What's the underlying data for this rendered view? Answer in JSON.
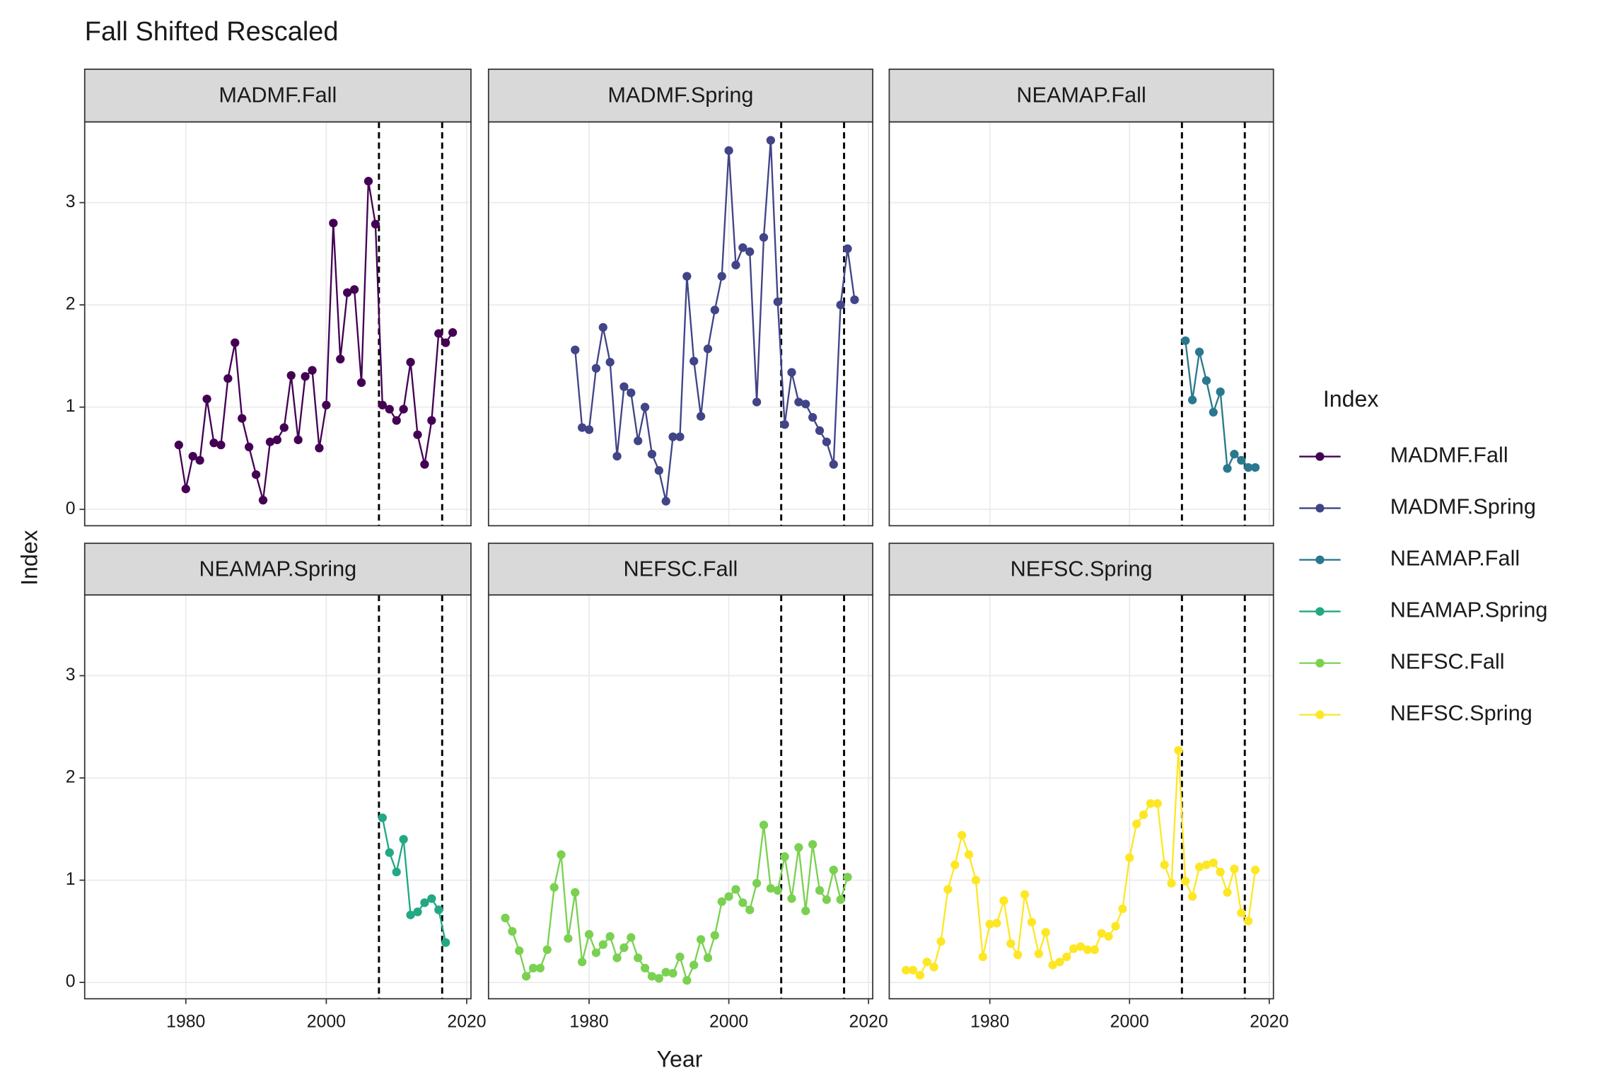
{
  "chart_data": {
    "type": "line",
    "title": "Fall Shifted Rescaled",
    "x_label": "Year",
    "y_label": "Index",
    "legend_title": "Index",
    "xlim": [
      1965.6,
      2020.6
    ],
    "ylim": [
      -0.16,
      3.79
    ],
    "xticks": [
      1980,
      2000,
      2020
    ],
    "yticks": [
      0,
      1,
      2,
      3
    ],
    "vlines": [
      2007.5,
      2016.5
    ],
    "grid": true,
    "series": [
      {
        "name": "MADMF.Fall",
        "color": "#440154",
        "x": [
          1979,
          1980,
          1981,
          1982,
          1983,
          1984,
          1985,
          1986,
          1987,
          1988,
          1989,
          1990,
          1991,
          1992,
          1993,
          1994,
          1995,
          1996,
          1997,
          1998,
          1999,
          2000,
          2001,
          2002,
          2003,
          2004,
          2005,
          2006,
          2007,
          2008,
          2009,
          2010,
          2011,
          2012,
          2013,
          2014,
          2015,
          2016,
          2017,
          2018
        ],
        "values": [
          0.63,
          0.2,
          0.52,
          0.48,
          1.08,
          0.65,
          0.63,
          1.28,
          1.63,
          0.89,
          0.61,
          0.34,
          0.09,
          0.66,
          0.68,
          0.8,
          1.31,
          0.68,
          1.3,
          1.36,
          0.6,
          1.02,
          2.8,
          1.47,
          2.12,
          2.15,
          1.24,
          3.21,
          2.79,
          1.02,
          0.98,
          0.87,
          0.98,
          1.44,
          0.73,
          0.44,
          0.87,
          1.72,
          1.63,
          1.73
        ]
      },
      {
        "name": "MADMF.Spring",
        "color": "#414487",
        "x": [
          1978,
          1979,
          1980,
          1981,
          1982,
          1983,
          1984,
          1985,
          1986,
          1987,
          1988,
          1989,
          1990,
          1991,
          1992,
          1993,
          1994,
          1995,
          1996,
          1997,
          1998,
          1999,
          2000,
          2001,
          2002,
          2003,
          2004,
          2005,
          2006,
          2007,
          2008,
          2009,
          2010,
          2011,
          2012,
          2013,
          2014,
          2015,
          2016,
          2017,
          2018
        ],
        "values": [
          1.56,
          0.8,
          0.78,
          1.38,
          1.78,
          1.44,
          0.52,
          1.2,
          1.14,
          0.67,
          1.0,
          0.54,
          0.38,
          0.08,
          0.71,
          0.71,
          2.28,
          1.45,
          0.91,
          1.57,
          1.95,
          2.28,
          3.51,
          2.39,
          2.56,
          2.52,
          1.05,
          2.66,
          3.61,
          2.03,
          0.83,
          1.34,
          1.05,
          1.03,
          0.9,
          0.77,
          0.66,
          0.44,
          2.0,
          2.55,
          2.05
        ]
      },
      {
        "name": "NEAMAP.Fall",
        "color": "#2A788E",
        "x": [
          2008,
          2009,
          2010,
          2011,
          2012,
          2013,
          2014,
          2015,
          2016,
          2017,
          2018
        ],
        "values": [
          1.65,
          1.07,
          1.54,
          1.26,
          0.95,
          1.15,
          0.4,
          0.54,
          0.48,
          0.41,
          0.41
        ]
      },
      {
        "name": "NEAMAP.Spring",
        "color": "#22A884",
        "x": [
          2008,
          2009,
          2010,
          2011,
          2012,
          2013,
          2014,
          2015,
          2016,
          2017
        ],
        "values": [
          1.61,
          1.27,
          1.08,
          1.4,
          0.66,
          0.69,
          0.78,
          0.82,
          0.71,
          0.39
        ]
      },
      {
        "name": "NEFSC.Fall",
        "color": "#7AD151",
        "x": [
          1968,
          1969,
          1970,
          1971,
          1972,
          1973,
          1974,
          1975,
          1976,
          1977,
          1978,
          1979,
          1980,
          1981,
          1982,
          1983,
          1984,
          1985,
          1986,
          1987,
          1988,
          1989,
          1990,
          1991,
          1992,
          1993,
          1994,
          1995,
          1996,
          1997,
          1998,
          1999,
          2000,
          2001,
          2002,
          2003,
          2004,
          2005,
          2006,
          2007,
          2008,
          2009,
          2010,
          2011,
          2012,
          2013,
          2014,
          2015,
          2016,
          2017
        ],
        "values": [
          0.63,
          0.5,
          0.31,
          0.06,
          0.14,
          0.14,
          0.32,
          0.93,
          1.25,
          0.43,
          0.88,
          0.2,
          0.47,
          0.29,
          0.37,
          0.45,
          0.24,
          0.34,
          0.44,
          0.24,
          0.14,
          0.06,
          0.04,
          0.1,
          0.09,
          0.25,
          0.02,
          0.17,
          0.42,
          0.24,
          0.46,
          0.79,
          0.84,
          0.91,
          0.78,
          0.71,
          0.97,
          1.54,
          0.92,
          0.9,
          1.23,
          0.82,
          1.32,
          0.7,
          1.35,
          0.9,
          0.81,
          1.1,
          0.81,
          1.03
        ]
      },
      {
        "name": "NEFSC.Spring",
        "color": "#FDE725",
        "x": [
          1968,
          1969,
          1970,
          1971,
          1972,
          1973,
          1974,
          1975,
          1976,
          1977,
          1978,
          1979,
          1980,
          1981,
          1982,
          1983,
          1984,
          1985,
          1986,
          1987,
          1988,
          1989,
          1990,
          1991,
          1992,
          1993,
          1994,
          1995,
          1996,
          1997,
          1998,
          1999,
          2000,
          2001,
          2002,
          2003,
          2004,
          2005,
          2006,
          2007,
          2008,
          2009,
          2010,
          2011,
          2012,
          2013,
          2014,
          2015,
          2016,
          2017,
          2018
        ],
        "values": [
          0.12,
          0.12,
          0.07,
          0.2,
          0.15,
          0.4,
          0.91,
          1.15,
          1.44,
          1.25,
          1.0,
          0.25,
          0.57,
          0.58,
          0.8,
          0.38,
          0.27,
          0.86,
          0.59,
          0.28,
          0.49,
          0.17,
          0.2,
          0.25,
          0.33,
          0.35,
          0.32,
          0.32,
          0.48,
          0.45,
          0.55,
          0.72,
          1.22,
          1.55,
          1.64,
          1.75,
          1.75,
          1.15,
          0.97,
          2.27,
          0.99,
          0.84,
          1.13,
          1.15,
          1.17,
          1.08,
          0.88,
          1.11,
          0.68,
          0.6,
          1.1
        ]
      }
    ]
  }
}
